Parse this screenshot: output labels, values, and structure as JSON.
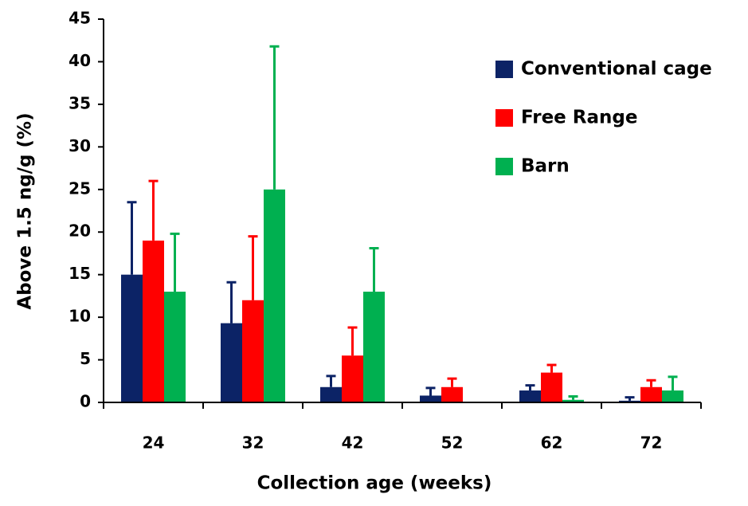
{
  "chart_data": {
    "type": "bar",
    "y_label": "Above 1.5 ng/g (%)",
    "x_label": "Collection age (weeks)",
    "categories": [
      "24",
      "32",
      "42",
      "52",
      "62",
      "72"
    ],
    "series": [
      {
        "name": "Conventional cage",
        "color": "#0c2366",
        "values": [
          15,
          9.3,
          1.8,
          0.8,
          1.4,
          0.2
        ],
        "errors": [
          8.5,
          4.8,
          1.3,
          0.9,
          0.6,
          0.4
        ]
      },
      {
        "name": "Free Range",
        "color": "#ff0000",
        "values": [
          19,
          12,
          5.5,
          1.8,
          3.5,
          1.8
        ],
        "errors": [
          7,
          7.5,
          3.3,
          1.0,
          0.9,
          0.8
        ]
      },
      {
        "name": "Barn",
        "color": "#00b050",
        "values": [
          13,
          25,
          13,
          0,
          0.3,
          1.4
        ],
        "errors": [
          6.8,
          16.8,
          5.1,
          0,
          0.4,
          1.6
        ]
      }
    ],
    "ylim": [
      0,
      45
    ],
    "yticks": [
      0,
      5,
      10,
      15,
      20,
      25,
      30,
      35,
      40,
      45
    ],
    "legend": "upper-right"
  }
}
